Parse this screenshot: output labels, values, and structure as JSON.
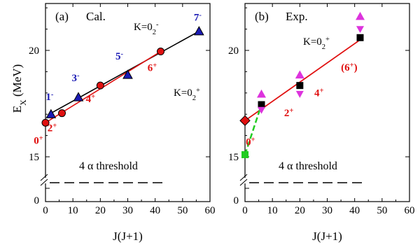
{
  "colors": {
    "red": "#e01010",
    "blue": "#1a1ab4",
    "black": "#000000",
    "green": "#22cc22",
    "magenta": "#dd33dd",
    "square": "#000000"
  },
  "chart_data": [
    {
      "type": "scatter",
      "panel_label": "(a)",
      "title": "Cal.",
      "xlabel": "J(J+1)",
      "ylabel": "Ex (MeV)",
      "ylabel_main": "E",
      "ylabel_sub": "X",
      "ylabel_unit": " (MeV)",
      "xlim": [
        0,
        60
      ],
      "ylim": [
        13.3,
        23.2
      ],
      "axis_break": true,
      "xticks": [
        0,
        10,
        20,
        30,
        40,
        50,
        60
      ],
      "xtick_labels": [
        "0",
        "10",
        "20",
        "30",
        "40",
        "50",
        "60"
      ],
      "yticks": [
        15,
        20
      ],
      "ytick_labels": [
        "15",
        "20"
      ],
      "ytick_zero_label": "0",
      "threshold": {
        "value": 14.44,
        "label": "4 α threshold"
      },
      "series": [
        {
          "name": "K=0₂⁻",
          "name_main": "K=0",
          "name_sub": "2",
          "name_sup": "-",
          "marker": "triangle",
          "color": "#1a1ab4",
          "line_color": "#000000",
          "fit_line": [
            [
              2,
              17.05
            ],
            [
              56,
              20.9
            ]
          ],
          "x": [
            2,
            12,
            30,
            56
          ],
          "y": [
            17.0,
            17.8,
            18.85,
            20.9
          ],
          "labels": [
            {
              "main": "1",
              "sup": "-"
            },
            {
              "main": "3",
              "sup": "-"
            },
            {
              "main": "5",
              "sup": "-"
            },
            {
              "main": "7",
              "sup": "-"
            }
          ]
        },
        {
          "name": "K=0₂⁺",
          "name_main": "K=0",
          "name_sub": "2",
          "name_sup": "+",
          "marker": "circle",
          "color": "#e01010",
          "line_color": "#e01010",
          "fit_line": [
            [
              0,
              16.6
            ],
            [
              42,
              19.95
            ]
          ],
          "x": [
            0,
            6,
            20,
            42
          ],
          "y": [
            16.6,
            17.05,
            18.35,
            19.95
          ],
          "labels": [
            {
              "main": "0",
              "sup": "+"
            },
            {
              "main": "2",
              "sup": "+"
            },
            {
              "main": "4",
              "sup": "+"
            },
            {
              "main": "6",
              "sup": "+"
            }
          ]
        }
      ]
    },
    {
      "type": "scatter",
      "panel_label": "(b)",
      "title": "Exp.",
      "xlabel": "J(J+1)",
      "ylabel": "",
      "xlim": [
        0,
        60
      ],
      "ylim": [
        13.3,
        23.2
      ],
      "axis_break": true,
      "xticks": [
        0,
        10,
        20,
        30,
        40,
        50,
        60
      ],
      "xtick_labels": [
        "0",
        "10",
        "20",
        "30",
        "40",
        "50",
        "60"
      ],
      "yticks": [
        15,
        20
      ],
      "ytick_labels": [
        "15",
        "20"
      ],
      "ytick_zero_label": "0",
      "threshold": {
        "value": 14.44,
        "label": "4 α threshold"
      },
      "band_label": {
        "main": "K=0",
        "sub": "2",
        "sup": "+"
      },
      "fit_line": {
        "color": "#e01010",
        "points": [
          [
            0,
            16.7
          ],
          [
            42,
            20.5
          ]
        ]
      },
      "dashed_line": {
        "color": "#22cc22",
        "points": [
          [
            0,
            15.1
          ],
          [
            6,
            17.45
          ]
        ]
      },
      "series": [
        {
          "name": "green square",
          "marker": "square",
          "color": "#22cc22",
          "x": [
            0
          ],
          "y": [
            15.1
          ]
        },
        {
          "name": "red diamond",
          "marker": "diamond",
          "color": "#e01010",
          "x": [
            0
          ],
          "y": [
            16.7
          ]
        },
        {
          "name": "black squares",
          "marker": "square",
          "color": "#000000",
          "x": [
            6,
            20,
            42
          ],
          "y": [
            17.45,
            18.35,
            20.6
          ]
        },
        {
          "name": "magenta triangles up",
          "marker": "triangle-up",
          "color": "#dd33dd",
          "x": [
            6,
            20,
            42
          ],
          "y": [
            17.95,
            18.85,
            21.6
          ]
        },
        {
          "name": "magenta triangles down",
          "marker": "triangle-down",
          "color": "#dd33dd",
          "x": [
            6,
            20,
            42
          ],
          "y": [
            17.2,
            17.95,
            21.0
          ]
        }
      ],
      "labels": [
        {
          "main": "0",
          "sup": "+",
          "x": 2,
          "y": 15.55,
          "color": "#e01010"
        },
        {
          "main": "2",
          "sup": "+",
          "x": 16,
          "y": 16.9,
          "color": "#e01010"
        },
        {
          "main": "4",
          "sup": "+",
          "x": 27,
          "y": 17.85,
          "color": "#e01010"
        },
        {
          "main": "(6",
          "sup": "+",
          "close": ")",
          "x": 38,
          "y": 19.05,
          "color": "#e01010"
        }
      ]
    }
  ]
}
